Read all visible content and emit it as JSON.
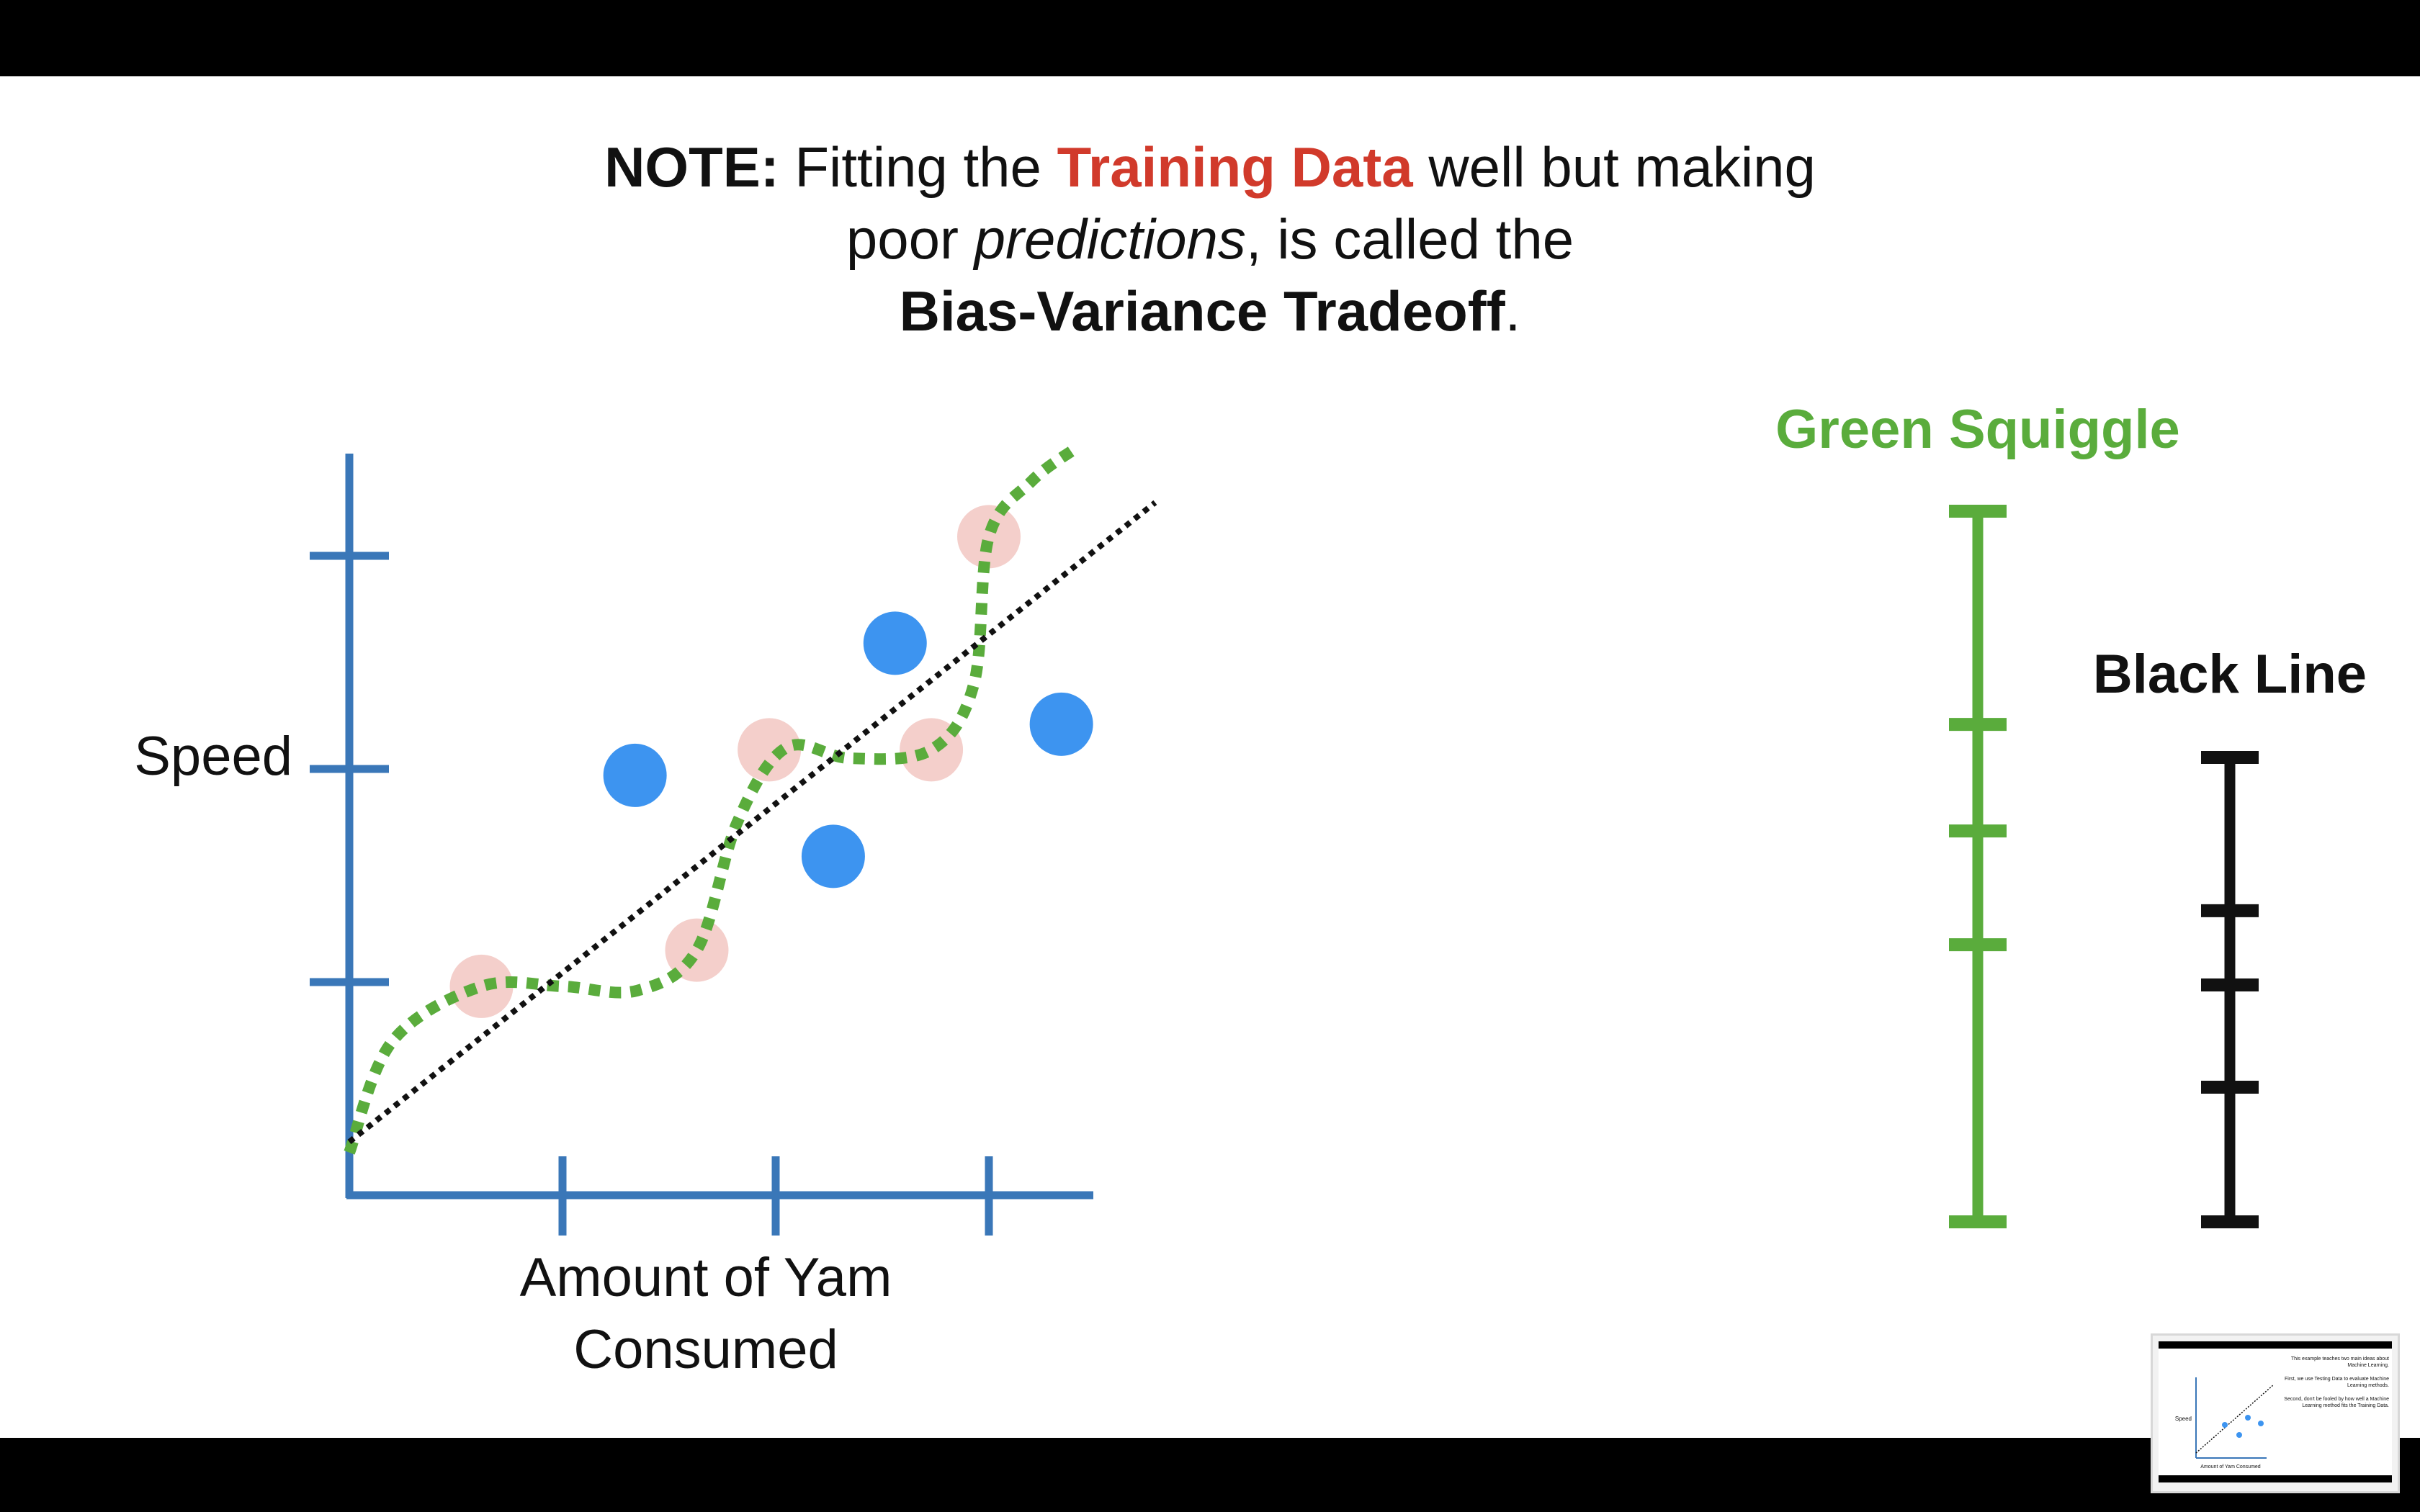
{
  "headline": {
    "line1_prefix": "NOTE:",
    "line1_mid": " Fitting the ",
    "line1_highlight": "Training Data",
    "line1_suffix": " well but making",
    "line2_prefix": "poor ",
    "line2_italic": "predictions",
    "line2_suffix": ", is called the",
    "line3_bold": "Bias-Variance Tradeoff",
    "line3_suffix": "."
  },
  "colors": {
    "axis": "#3a77b8",
    "training_point": "#f4cfcb",
    "testing_point": "#3d94f0",
    "squiggle": "#5aac3c",
    "line": "#111111",
    "squiggle_label": "#5aac3c",
    "line_label": "#111111"
  },
  "chart_data": [
    {
      "type": "scatter",
      "xlabel": "Amount of Yam Consumed",
      "ylabel": "Speed",
      "xlim": [
        0,
        3.5
      ],
      "ylim": [
        0,
        3.4
      ],
      "x_ticks": [
        1,
        2,
        3
      ],
      "y_ticks": [
        1,
        2,
        3
      ],
      "grid": false,
      "series": [
        {
          "name": "",
          "role": "training",
          "points": [
            [
              0.62,
              0.98
            ],
            [
              1.63,
              1.15
            ],
            [
              1.97,
              2.09
            ],
            [
              2.73,
              2.09
            ],
            [
              3.0,
              3.09
            ]
          ]
        },
        {
          "name": "",
          "role": "testing",
          "points": [
            [
              1.34,
              1.97
            ],
            [
              2.27,
              1.59
            ],
            [
              2.56,
              2.59
            ],
            [
              3.34,
              2.21
            ]
          ]
        }
      ],
      "fits": [
        {
          "style": "dotted-green",
          "points": [
            [
              0,
              0.2
            ],
            [
              0.2,
              0.72
            ],
            [
              0.62,
              0.98
            ],
            [
              1.0,
              0.98
            ],
            [
              1.35,
              0.96
            ],
            [
              1.63,
              1.15
            ],
            [
              1.82,
              1.75
            ],
            [
              2.05,
              2.1
            ],
            [
              2.35,
              2.05
            ],
            [
              2.73,
              2.09
            ],
            [
              2.93,
              2.4
            ],
            [
              3.0,
              3.09
            ],
            [
              3.2,
              3.35
            ],
            [
              3.4,
              3.5
            ]
          ]
        },
        {
          "style": "dotted-black",
          "points": [
            [
              0,
              0.25
            ],
            [
              3.78,
              3.25
            ]
          ]
        }
      ]
    },
    {
      "type": "scale-comparison",
      "scales": [
        {
          "label": "Green Squiggle",
          "ticks": [
            0,
            0.39,
            0.55,
            0.7,
            1.0
          ]
        },
        {
          "label": "Black Line",
          "ticks": [
            0,
            0.29,
            0.51,
            0.67,
            1.0
          ]
        }
      ]
    }
  ],
  "thumbnail": {
    "line1": "This example teaches two main ideas about Machine Learning.",
    "line2": "First, we use Testing Data to evaluate Machine Learning methods.",
    "line3": "Second, don't be fooled by how well a Machine Learning method fits the Training Data.",
    "ylabel": "Speed",
    "xlabel": "Amount of Yam Consumed"
  }
}
